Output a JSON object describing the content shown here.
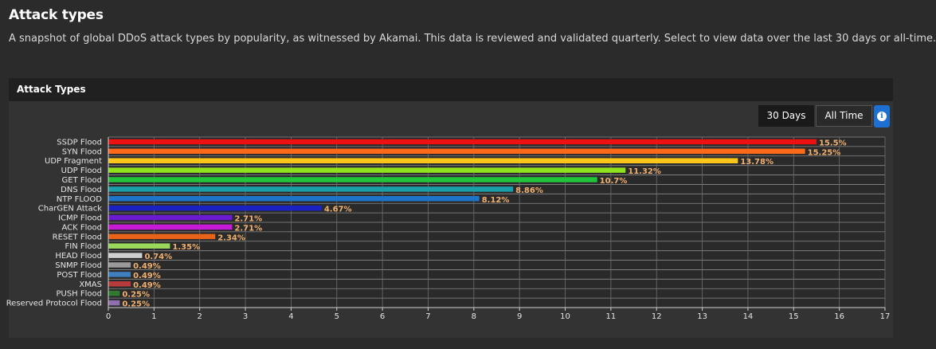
{
  "page": {
    "title": "Attack types",
    "description": "A snapshot of global DDoS attack types by popularity, as witnessed by Akamai. This data is reviewed and validated quarterly. Select to view data over the last 30 days or all-time."
  },
  "panel": {
    "title": "Attack Types",
    "buttons": {
      "thirty_days": "30 Days",
      "all_time": "All Time"
    },
    "info_icon": "info-icon"
  },
  "chart_data": {
    "type": "bar",
    "orientation": "horizontal",
    "categories": [
      "SSDP Flood",
      "SYN Flood",
      "UDP Fragment",
      "UDP Flood",
      "GET Flood",
      "DNS Flood",
      "NTP FLOOD",
      "CharGEN Attack",
      "ICMP Flood",
      "ACK Flood",
      "RESET Flood",
      "FIN Flood",
      "HEAD Flood",
      "SNMP Flood",
      "POST Flood",
      "XMAS",
      "PUSH Flood",
      "Reserved Protocol Flood"
    ],
    "values": [
      15.5,
      15.25,
      13.78,
      11.32,
      10.7,
      8.86,
      8.12,
      4.67,
      2.71,
      2.71,
      2.34,
      1.35,
      0.74,
      0.49,
      0.49,
      0.49,
      0.25,
      0.25
    ],
    "labels": [
      "15.5%",
      "15.25%",
      "13.78%",
      "11.32%",
      "10.7%",
      "8.86%",
      "8.12%",
      "4.67%",
      "2.71%",
      "2.71%",
      "2.34%",
      "1.35%",
      "0.74%",
      "0.49%",
      "0.49%",
      "0.49%",
      "0.25%",
      "0.25%"
    ],
    "colors": [
      "#ee1111",
      "#ff6a1a",
      "#ffc61a",
      "#8fe21c",
      "#22c43a",
      "#1a9fa8",
      "#1e74c8",
      "#1b22c4",
      "#6a1bd1",
      "#c61ad6",
      "#e8621a",
      "#9ad85a",
      "#cfcfcf",
      "#9a9a9a",
      "#3f7fc0",
      "#b83a3a",
      "#2f7a2f",
      "#8f6fb0"
    ],
    "xticks": [
      0,
      1,
      2,
      3,
      4,
      5,
      6,
      7,
      8,
      9,
      10,
      11,
      12,
      13,
      14,
      15,
      16,
      17
    ],
    "xlim": [
      0,
      17
    ],
    "grid": true,
    "label_color": "#f0b070"
  }
}
